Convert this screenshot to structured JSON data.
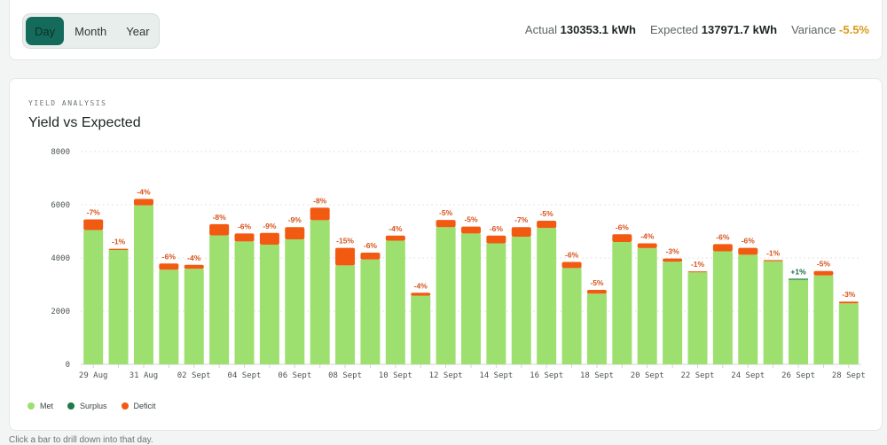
{
  "toggle": {
    "options": [
      "Day",
      "Month",
      "Year"
    ],
    "selected": "Day"
  },
  "stats": {
    "actual_label": "Actual",
    "actual_value": "130353.1 kWh",
    "expected_label": "Expected",
    "expected_value": "137971.7 kWh",
    "variance_label": "Variance",
    "variance_value": "-5.5%"
  },
  "card": {
    "eyebrow": "YIELD ANALYSIS",
    "title": "Yield vs Expected"
  },
  "legend": {
    "met": "Met",
    "surplus": "Surplus",
    "deficit": "Deficit"
  },
  "footnote": "Click a bar to drill down into that day.",
  "colors": {
    "met": "#9de070",
    "surplus": "#1f7a4a",
    "deficit": "#f25a12",
    "deficit_label": "#d8521a",
    "surplus_label": "#176b43"
  },
  "chart_data": {
    "type": "bar",
    "stacked": true,
    "ylim": [
      0,
      8000
    ],
    "yticks": [
      0,
      2000,
      4000,
      6000,
      8000
    ],
    "grid": true,
    "categories": [
      "29 Aug",
      "30 Aug",
      "31 Aug",
      "01 Sept",
      "02 Sept",
      "03 Sept",
      "04 Sept",
      "05 Sept",
      "06 Sept",
      "07 Sept",
      "08 Sept",
      "09 Sept",
      "10 Sept",
      "11 Sept",
      "12 Sept",
      "13 Sept",
      "14 Sept",
      "15 Sept",
      "16 Sept",
      "17 Sept",
      "18 Sept",
      "19 Sept",
      "20 Sept",
      "21 Sept",
      "22 Sept",
      "23 Sept",
      "24 Sept",
      "25 Sept",
      "26 Sept",
      "27 Sept",
      "28 Sept"
    ],
    "xtick_labels": [
      "29 Aug",
      "",
      "31 Aug",
      "",
      "02 Sept",
      "",
      "04 Sept",
      "",
      "06 Sept",
      "",
      "08 Sept",
      "",
      "10 Sept",
      "",
      "12 Sept",
      "",
      "14 Sept",
      "",
      "16 Sept",
      "",
      "18 Sept",
      "",
      "20 Sept",
      "",
      "22 Sept",
      "",
      "24 Sept",
      "",
      "26 Sept",
      "",
      "28 Sept"
    ],
    "series": [
      {
        "name": "Met",
        "values": [
          5050,
          4300,
          5980,
          3560,
          3590,
          4850,
          4620,
          4500,
          4700,
          5420,
          3720,
          3940,
          4650,
          2580,
          5160,
          4920,
          4550,
          4800,
          5130,
          3620,
          2660,
          4600,
          4370,
          3860,
          3460,
          4250,
          4120,
          3880,
          3180,
          3340,
          2290
        ]
      },
      {
        "name": "Surplus",
        "values": [
          0,
          0,
          0,
          0,
          0,
          0,
          0,
          0,
          0,
          0,
          0,
          0,
          0,
          0,
          0,
          0,
          0,
          0,
          0,
          0,
          0,
          0,
          0,
          0,
          0,
          0,
          0,
          0,
          40,
          0,
          0
        ]
      },
      {
        "name": "Deficit",
        "values": [
          400,
          45,
          240,
          230,
          150,
          420,
          300,
          440,
          460,
          470,
          660,
          260,
          190,
          110,
          270,
          260,
          290,
          360,
          270,
          230,
          140,
          290,
          180,
          120,
          35,
          270,
          260,
          40,
          0,
          170,
          70
        ]
      }
    ],
    "data_labels": [
      "-7%",
      "-1%",
      "-4%",
      "-6%",
      "-4%",
      "-8%",
      "-6%",
      "-9%",
      "-9%",
      "-8%",
      "-15%",
      "-6%",
      "-4%",
      "-4%",
      "-5%",
      "-5%",
      "-6%",
      "-7%",
      "-5%",
      "-6%",
      "-5%",
      "-6%",
      "-4%",
      "-3%",
      "-1%",
      "-6%",
      "-6%",
      "-1%",
      "+1%",
      "-5%",
      "-3%"
    ],
    "legend_position": "bottom-left"
  }
}
